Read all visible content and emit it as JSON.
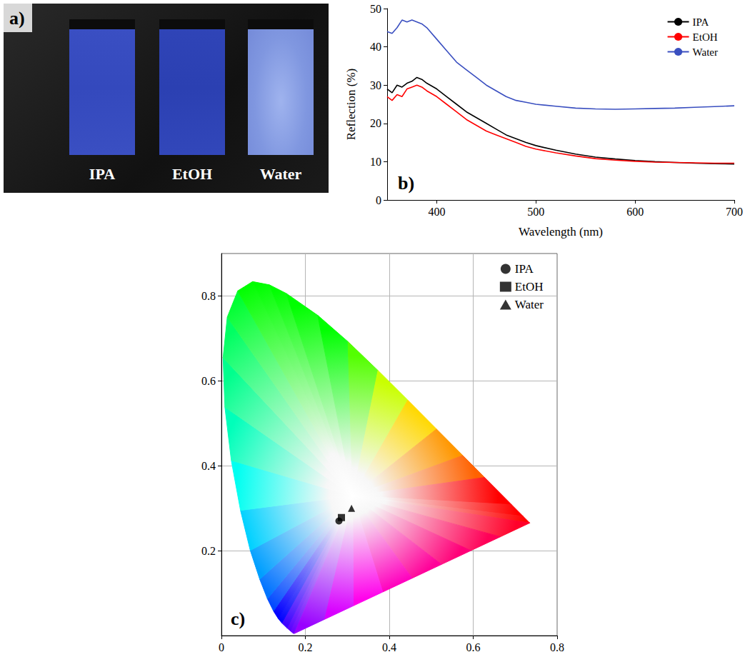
{
  "photo": {
    "title": "a)",
    "labels": [
      "IPA",
      "EtOH",
      "Water"
    ]
  },
  "chart_data": [
    {
      "type": "line",
      "title": "b)",
      "x_label": "Wavelength (nm)",
      "y_label": "Reflection (%)",
      "x": [
        350,
        355,
        360,
        365,
        370,
        375,
        380,
        385,
        390,
        400,
        410,
        420,
        430,
        440,
        450,
        460,
        470,
        480,
        490,
        500,
        520,
        540,
        560,
        580,
        600,
        620,
        640,
        660,
        680,
        700
      ],
      "series": [
        {
          "name": "IPA",
          "color": "#000000",
          "values": [
            29,
            28,
            30,
            29.5,
            30.5,
            31,
            32,
            31.5,
            30.5,
            29,
            27,
            25,
            23,
            21.5,
            20,
            18.5,
            17,
            16,
            15,
            14.2,
            13,
            12,
            11.2,
            10.7,
            10.3,
            10,
            9.8,
            9.6,
            9.5,
            9.4
          ]
        },
        {
          "name": "EtOH",
          "color": "#ff0000",
          "values": [
            27,
            26,
            27.5,
            27,
            29,
            29.5,
            30,
            29.5,
            28.5,
            27,
            25,
            23,
            21,
            19.5,
            18,
            17,
            16,
            15,
            14,
            13.3,
            12.3,
            11.5,
            10.8,
            10.4,
            10.1,
            9.9,
            9.8,
            9.7,
            9.6,
            9.6
          ]
        },
        {
          "name": "Water",
          "color": "#3a4fc0",
          "values": [
            44,
            43.5,
            45,
            47,
            46.5,
            47,
            46.5,
            46,
            45,
            42,
            39,
            36,
            34,
            32,
            30,
            28.5,
            27,
            26,
            25.5,
            25,
            24.5,
            24,
            23.8,
            23.7,
            23.8,
            23.9,
            24,
            24.2,
            24.4,
            24.6
          ]
        }
      ],
      "xlim": [
        350,
        700
      ],
      "xticks": [
        400,
        500,
        600,
        700
      ],
      "ylim": [
        0,
        50
      ],
      "yticks": [
        0,
        10,
        20,
        30,
        40,
        50
      ],
      "grid": false,
      "legend": "top-right"
    },
    {
      "type": "scatter",
      "title": "c)",
      "series": [
        {
          "name": "IPA",
          "color": "#000000",
          "marker": "circle",
          "x": [
            0.28
          ],
          "values": [
            0.27
          ]
        },
        {
          "name": "EtOH",
          "color": "#000000",
          "marker": "square",
          "x": [
            0.286
          ],
          "values": [
            0.278
          ]
        },
        {
          "name": "Water",
          "color": "#000000",
          "marker": "triangle",
          "x": [
            0.31
          ],
          "values": [
            0.3
          ]
        }
      ],
      "spectral_locus": {
        "x": [
          0.1741,
          0.1714,
          0.1644,
          0.1566,
          0.144,
          0.1355,
          0.1241,
          0.1096,
          0.0913,
          0.0687,
          0.0454,
          0.0235,
          0.0082,
          0.0039,
          0.0139,
          0.0389,
          0.0743,
          0.1142,
          0.1547,
          0.2296,
          0.3016,
          0.3731,
          0.4441,
          0.5125,
          0.5752,
          0.627,
          0.6915,
          0.719,
          0.7347
        ],
        "y": [
          0.005,
          0.0051,
          0.0109,
          0.0177,
          0.0297,
          0.0399,
          0.0578,
          0.0868,
          0.1327,
          0.2007,
          0.295,
          0.4127,
          0.5384,
          0.6548,
          0.7502,
          0.812,
          0.8338,
          0.8262,
          0.8059,
          0.7543,
          0.6923,
          0.6245,
          0.5547,
          0.4866,
          0.4242,
          0.3725,
          0.3083,
          0.2809,
          0.2653
        ]
      },
      "xlim": [
        0,
        0.8
      ],
      "xticks": [
        0,
        0.2,
        0.4,
        0.6,
        0.8
      ],
      "ylim": [
        0,
        0.9
      ],
      "yticks": [
        0.2,
        0.4,
        0.6,
        0.8
      ],
      "grid": true,
      "legend": "top-right"
    }
  ]
}
